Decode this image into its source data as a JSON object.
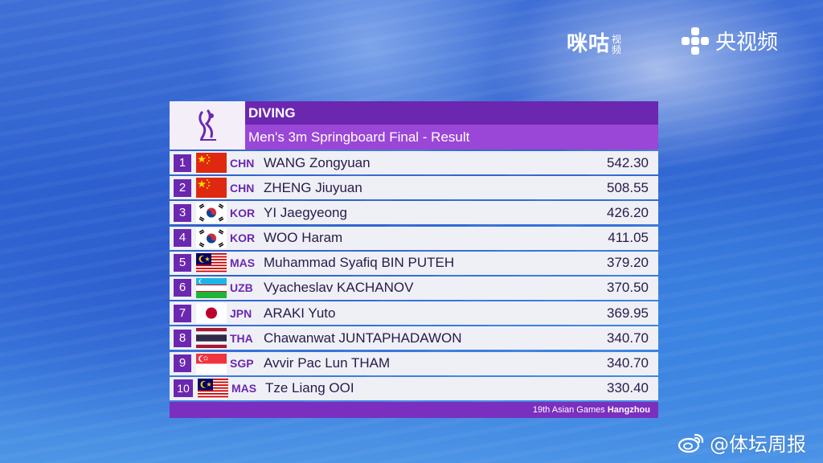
{
  "broadcast": {
    "migu_logo": "咪咕",
    "migu_sub": "视频",
    "cctv_logo": "央视频"
  },
  "board": {
    "sport": "DIVING",
    "event": "Men's 3m Springboard Final - Result",
    "footer_event": "19th Asian Games",
    "footer_city": "Hangzhou",
    "rows": [
      {
        "rank": "1",
        "flag": "chn-flag-icon",
        "code": "CHN",
        "name": "WANG Zongyuan",
        "score": "542.30"
      },
      {
        "rank": "2",
        "flag": "chn-flag-icon",
        "code": "CHN",
        "name": "ZHENG Jiuyuan",
        "score": "508.55"
      },
      {
        "rank": "3",
        "flag": "kor-flag-icon",
        "code": "KOR",
        "name": "YI Jaegyeong",
        "score": "426.20"
      },
      {
        "rank": "4",
        "flag": "kor-flag-icon",
        "code": "KOR",
        "name": "WOO Haram",
        "score": "411.05"
      },
      {
        "rank": "5",
        "flag": "mas-flag-icon",
        "code": "MAS",
        "name": "Muhammad Syafiq BIN PUTEH",
        "score": "379.20"
      },
      {
        "rank": "6",
        "flag": "uzb-flag-icon",
        "code": "UZB",
        "name": "Vyacheslav KACHANOV",
        "score": "370.50"
      },
      {
        "rank": "7",
        "flag": "jpn-flag-icon",
        "code": "JPN",
        "name": "ARAKI Yuto",
        "score": "369.95"
      },
      {
        "rank": "8",
        "flag": "tha-flag-icon",
        "code": "THA",
        "name": "Chawanwat JUNTAPHADAWON",
        "score": "340.70"
      },
      {
        "rank": "9",
        "flag": "sgp-flag-icon",
        "code": "SGP",
        "name": "Avvir Pac Lun THAM",
        "score": "340.70"
      },
      {
        "rank": "10",
        "flag": "mas-flag-icon",
        "code": "MAS",
        "name": "Tze Liang OOI",
        "score": "330.40"
      }
    ]
  },
  "watermark": {
    "text": "@体坛周报"
  },
  "colors": {
    "accent": "#6b27b0",
    "header_light": "#9a46d6",
    "row_bg": "#eef0f6"
  }
}
